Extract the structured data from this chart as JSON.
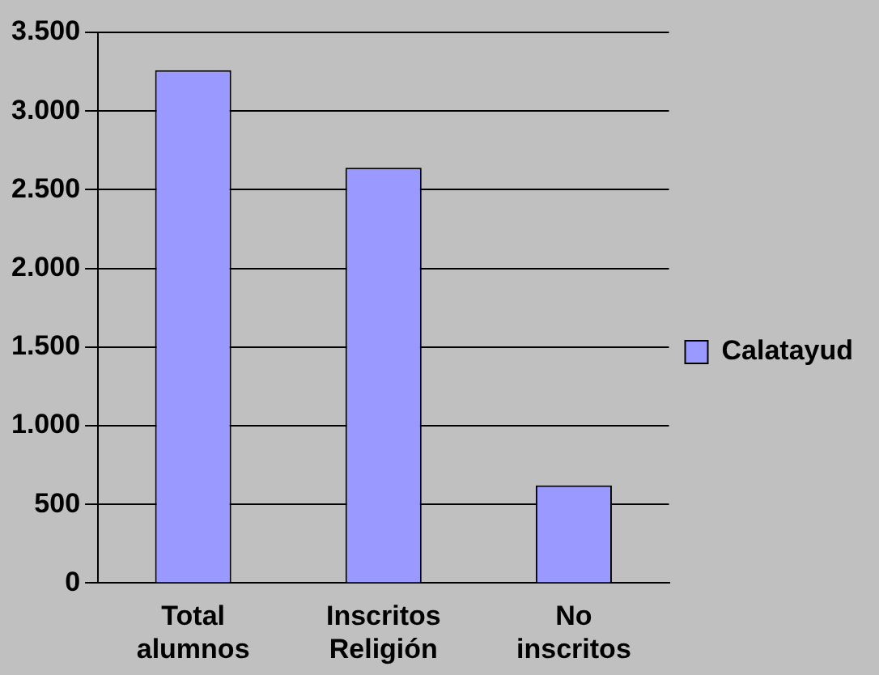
{
  "chart_data": {
    "type": "bar",
    "categories": [
      "Total alumnos",
      "Inscritos Religión",
      "No inscritos"
    ],
    "series": [
      {
        "name": "Calatayud",
        "color": "#9999ff",
        "values": [
          3260,
          2640,
          620
        ]
      }
    ],
    "ylim": [
      0,
      3500
    ],
    "yticks": [
      {
        "value": 0,
        "label": "0"
      },
      {
        "value": 500,
        "label": "500"
      },
      {
        "value": 1000,
        "label": "1.000"
      },
      {
        "value": 1500,
        "label": "1.500"
      },
      {
        "value": 2000,
        "label": "2.000"
      },
      {
        "value": 2500,
        "label": "2.500"
      },
      {
        "value": 3000,
        "label": "3.000"
      },
      {
        "value": 3500,
        "label": "3.500"
      }
    ],
    "grid": "y",
    "legend": "right"
  }
}
